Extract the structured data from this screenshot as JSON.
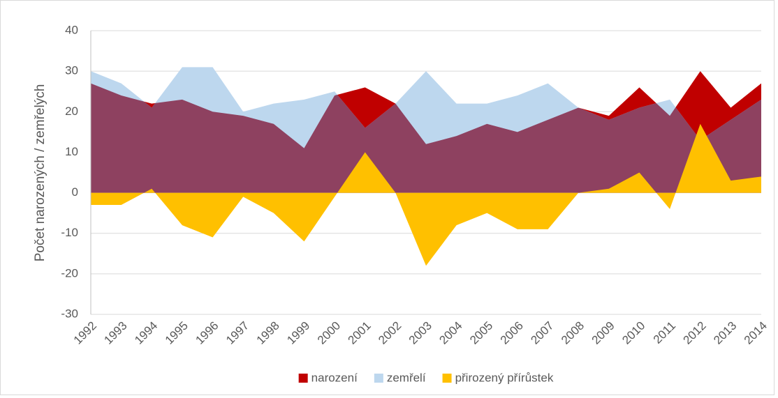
{
  "chart_data": {
    "type": "area",
    "ylabel": "Počet narozených / zemřelých",
    "categories": [
      "1992",
      "1993",
      "1994",
      "1995",
      "1996",
      "1997",
      "1998",
      "1999",
      "2000",
      "2001",
      "2002",
      "2003",
      "2004",
      "2005",
      "2006",
      "2007",
      "2008",
      "2009",
      "2010",
      "2011",
      "2012",
      "2013",
      "2014"
    ],
    "series": [
      {
        "name": "narození",
        "color": "#c00000",
        "values": [
          27,
          24,
          22,
          23,
          20,
          19,
          17,
          11,
          24,
          26,
          22,
          12,
          14,
          17,
          15,
          18,
          21,
          19,
          26,
          19,
          30,
          21,
          27
        ]
      },
      {
        "name": "zemřelí",
        "color": "#bdd7ee",
        "values": [
          30,
          27,
          21,
          31,
          31,
          20,
          22,
          23,
          25,
          16,
          22,
          30,
          22,
          22,
          24,
          27,
          21,
          18,
          21,
          23,
          13,
          18,
          23
        ]
      },
      {
        "name": "přirozený přírůstek",
        "color": "#ffc000",
        "values": [
          -3,
          -3,
          1,
          -8,
          -11,
          -1,
          -5,
          -12,
          -1,
          10,
          0,
          -18,
          -8,
          -5,
          -9,
          -9,
          0,
          1,
          5,
          -4,
          17,
          3,
          4
        ]
      }
    ],
    "overlap_color": "#8e4160",
    "ylim": [
      -30,
      40
    ],
    "yticks": [
      -30,
      -20,
      -10,
      0,
      10,
      20,
      30,
      40
    ],
    "grid": true,
    "legend": "bottom"
  }
}
